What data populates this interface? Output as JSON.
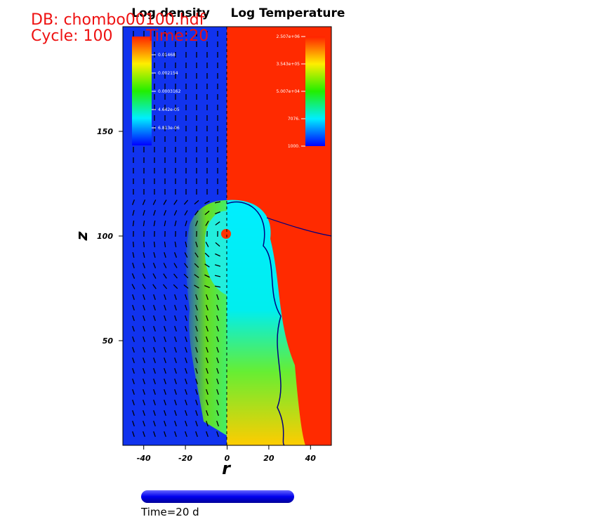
{
  "header": {
    "database": "DB: chombo00100.hdf",
    "cycle": "Cycle: 100",
    "time": "Time:20"
  },
  "plot": {
    "left_title": "Log density",
    "right_title": "Log Temperature",
    "xlabel": "r",
    "ylabel": "z",
    "xlim": [
      -50,
      50
    ],
    "ylim": [
      0,
      200
    ],
    "xticks": [
      -40,
      -20,
      0,
      20,
      40
    ],
    "yticks": [
      50,
      100,
      150
    ]
  },
  "density_legend": {
    "labels": [
      "0.01468",
      "0.002154",
      "0.0003162",
      "4.642e-05",
      "6.813e-06"
    ]
  },
  "temperature_legend": {
    "labels": [
      "2.507e+06",
      "3.543e+05",
      "5.007e+04",
      "7076.",
      "1000."
    ]
  },
  "time_slider": {
    "label": "Time=20 d"
  }
}
